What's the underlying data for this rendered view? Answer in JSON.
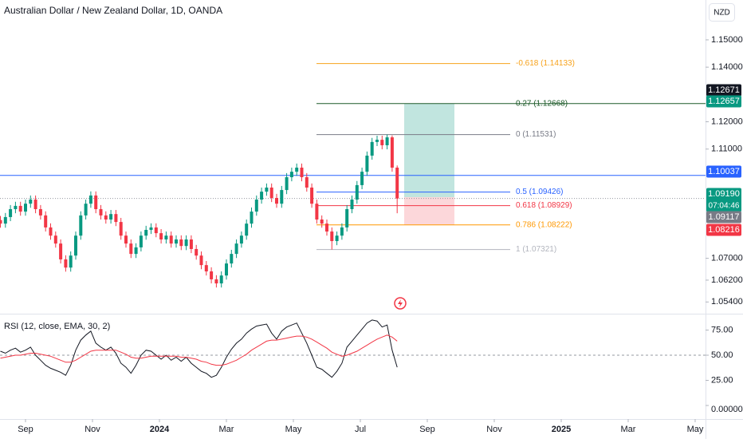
{
  "header": {
    "title": "Australian Dollar / New Zealand Dollar, 1D, OANDA",
    "currency": "NZD"
  },
  "chart_data": {
    "type": "candlestick",
    "x": [
      0.25,
      0.4,
      0.55,
      0.7,
      0.85,
      1,
      1.15,
      1.3,
      1.45,
      1.6,
      1.75,
      1.9,
      2.05,
      2.2,
      2.35,
      2.5,
      2.65,
      2.8,
      2.95,
      3.1,
      3.25,
      3.4,
      3.55,
      3.7,
      3.85,
      4,
      4.15,
      4.3,
      4.45,
      4.6,
      4.75,
      4.9,
      5.05,
      5.2,
      5.35,
      5.5,
      5.65,
      5.8,
      5.95,
      6.1,
      6.25,
      6.4,
      6.55,
      6.7,
      6.85,
      7,
      7.15,
      7.3,
      7.45,
      7.6,
      7.75,
      7.9,
      8.05,
      8.2,
      8.35,
      8.5,
      8.65,
      8.8,
      8.95,
      9.1,
      9.25,
      9.4,
      9.55,
      9.7,
      9.85,
      10,
      10.15,
      10.3,
      10.45,
      10.6,
      10.75,
      10.9,
      11.05,
      11.2,
      11.35,
      11.5,
      11.65,
      11.8,
      11.95,
      12.1
    ],
    "open": [
      1.084,
      1.0827,
      1.0851,
      1.088,
      1.0892,
      1.0871,
      1.09,
      1.0915,
      1.088,
      1.0857,
      1.0813,
      1.0783,
      1.0754,
      1.0696,
      1.0666,
      1.071,
      1.0783,
      1.0857,
      1.09,
      1.093,
      1.088,
      1.0857,
      1.0842,
      1.0862,
      1.0833,
      1.0783,
      1.0754,
      1.0716,
      1.074,
      1.0783,
      1.0804,
      1.0813,
      1.0792,
      1.0769,
      1.0783,
      1.0754,
      1.0769,
      1.0745,
      1.0769,
      1.0734,
      1.071,
      1.0675,
      1.0652,
      1.0623,
      1.0608,
      1.0637,
      1.0681,
      1.0716,
      1.0754,
      1.0783,
      1.0827,
      1.0871,
      1.0915,
      1.0944,
      1.0959,
      1.0921,
      1.09,
      1.095,
      1.0997,
      1.1017,
      1.1032,
      1.0997,
      1.0959,
      1.09,
      1.0842,
      1.0827,
      1.0798,
      1.0763,
      1.0783,
      1.0813,
      1.088,
      1.0915,
      1.0968,
      1.1017,
      1.1076,
      1.1126,
      1.1134,
      1.1114,
      1.1143,
      1.1032
    ],
    "high": [
      1.0855,
      1.0866,
      1.0895,
      1.0907,
      1.0907,
      1.0915,
      1.093,
      1.093,
      1.0895,
      1.0872,
      1.0828,
      1.0798,
      1.0769,
      1.0711,
      1.0725,
      1.0798,
      1.0872,
      1.0915,
      1.0945,
      1.0945,
      1.0895,
      1.0872,
      1.0877,
      1.0877,
      1.0848,
      1.0798,
      1.0769,
      1.0755,
      1.0798,
      1.0819,
      1.0828,
      1.0828,
      1.0807,
      1.0798,
      1.0798,
      1.0784,
      1.0784,
      1.0784,
      1.0784,
      1.0749,
      1.0725,
      1.069,
      1.0667,
      1.0638,
      1.0652,
      1.0696,
      1.0731,
      1.0769,
      1.0798,
      1.0842,
      1.0886,
      1.093,
      1.0959,
      1.0974,
      1.0974,
      1.0936,
      1.0965,
      1.1012,
      1.1032,
      1.1047,
      1.1047,
      1.1012,
      1.0974,
      1.0915,
      1.0857,
      1.0842,
      1.0813,
      1.0798,
      1.0828,
      1.0895,
      1.093,
      1.0983,
      1.1032,
      1.1091,
      1.1141,
      1.1149,
      1.1149,
      1.1153,
      1.115,
      1.104
    ],
    "low": [
      1.0812,
      1.0812,
      1.0836,
      1.0865,
      1.0856,
      1.0856,
      1.0885,
      1.0865,
      1.0842,
      1.0798,
      1.0768,
      1.0739,
      1.0681,
      1.0651,
      1.0651,
      1.0695,
      1.0768,
      1.0842,
      1.0885,
      1.0865,
      1.0842,
      1.0827,
      1.0827,
      1.0818,
      1.0768,
      1.0739,
      1.0701,
      1.0701,
      1.0725,
      1.0768,
      1.0789,
      1.0777,
      1.0754,
      1.0754,
      1.0739,
      1.0739,
      1.073,
      1.073,
      1.0719,
      1.0695,
      1.066,
      1.0637,
      1.0608,
      1.0593,
      1.0593,
      1.0622,
      1.0666,
      1.0701,
      1.0739,
      1.0768,
      1.0812,
      1.0856,
      1.09,
      1.0929,
      1.0906,
      1.0885,
      1.0885,
      1.0935,
      1.0982,
      1.1002,
      1.0982,
      1.0944,
      1.0885,
      1.0827,
      1.0812,
      1.0783,
      1.0732,
      1.0748,
      1.0768,
      1.0798,
      1.0865,
      1.09,
      1.0953,
      1.1002,
      1.1061,
      1.1111,
      1.1099,
      1.1099,
      1.1017,
      1.0865
    ],
    "close": [
      1.0827,
      1.0851,
      1.088,
      1.0892,
      1.0871,
      1.09,
      1.0915,
      1.088,
      1.0857,
      1.0813,
      1.0783,
      1.0754,
      1.0696,
      1.0666,
      1.071,
      1.0783,
      1.0857,
      1.09,
      1.093,
      1.088,
      1.0857,
      1.0842,
      1.0862,
      1.0833,
      1.0783,
      1.0754,
      1.0716,
      1.074,
      1.0783,
      1.0804,
      1.0813,
      1.0792,
      1.0769,
      1.0783,
      1.0754,
      1.0769,
      1.0745,
      1.0769,
      1.0734,
      1.071,
      1.0675,
      1.0652,
      1.0623,
      1.0608,
      1.0637,
      1.0681,
      1.0716,
      1.0754,
      1.0783,
      1.0827,
      1.0871,
      1.0915,
      1.0944,
      1.0959,
      1.0921,
      1.09,
      1.095,
      1.0997,
      1.1017,
      1.1032,
      1.0997,
      1.0959,
      1.09,
      1.0842,
      1.0827,
      1.0798,
      1.0763,
      1.0783,
      1.0813,
      1.088,
      1.0915,
      1.0968,
      1.1017,
      1.1076,
      1.1126,
      1.1134,
      1.1114,
      1.1143,
      1.1032,
      1.0919
    ],
    "up_color": "#089981",
    "down_color": "#f23645",
    "xlim": [
      0.238,
      21.31
    ],
    "xticks": [
      {
        "value": 1,
        "label": "Sep"
      },
      {
        "value": 3,
        "label": "Nov"
      },
      {
        "value": 5,
        "label": "2024"
      },
      {
        "value": 7,
        "label": "Mar"
      },
      {
        "value": 9,
        "label": "May"
      },
      {
        "value": 11,
        "label": "Jul"
      },
      {
        "value": 13,
        "label": "Sep"
      },
      {
        "value": 15,
        "label": "Nov"
      },
      {
        "value": 17,
        "label": "2025"
      },
      {
        "value": 19,
        "label": "Mar"
      },
      {
        "value": 21,
        "label": "May"
      }
    ],
    "ylim": [
      1.05,
      1.1646
    ],
    "yticks": [
      {
        "value": 1.15,
        "label": "1.15000"
      },
      {
        "value": 1.14,
        "label": "1.14000"
      },
      {
        "value": 1.12,
        "label": "1.12000"
      },
      {
        "value": 1.11,
        "label": "1.11000"
      },
      {
        "value": 1.07,
        "label": "1.07000"
      },
      {
        "value": 1.062,
        "label": "1.06200"
      },
      {
        "value": 1.054,
        "label": "1.05400"
      }
    ],
    "fib_levels": [
      {
        "text": "-0.618 (1.14133)",
        "value": 1.14133,
        "color": "#f7a21b",
        "extend_right": false
      },
      {
        "text": "0.27 (1.12668)",
        "value": 1.12668,
        "color": "#1e5b2a",
        "extend_right": true
      },
      {
        "text": "0 (1.11531)",
        "value": 1.11531,
        "color": "#787b86",
        "extend_right": false
      },
      {
        "text": "0.5 (1.09426)",
        "value": 1.09426,
        "color": "#2962ff",
        "extend_right": false
      },
      {
        "text": "0.618 (1.08929)",
        "value": 1.08929,
        "color": "#f23645",
        "extend_right": false
      },
      {
        "text": "0.786 (1.08222)",
        "value": 1.08222,
        "color": "#ff9800",
        "extend_right": false
      },
      {
        "text": "1 (1.07321)",
        "value": 1.07321,
        "color": "#b2b5be",
        "extend_right": false
      }
    ],
    "horizontal_lines": [
      {
        "value": 1.10037,
        "color": "#2962ff"
      }
    ],
    "position": {
      "target": 1.12657,
      "entry": 1.0924,
      "stop": 1.08222
    },
    "price_labels": [
      {
        "value": 1.12671,
        "label": "1.12671",
        "color": "#131722"
      },
      {
        "value": 1.12657,
        "label": "1.12657",
        "color": "#089981"
      },
      {
        "value": 1.10037,
        "label": "1.10037",
        "color": "#2962ff"
      },
      {
        "value": 1.0919,
        "label": "1.09190",
        "color": "#089981",
        "timer": "07:04:46"
      },
      {
        "value": 1.09117,
        "label": "1.09117",
        "color": "#787b86"
      },
      {
        "value": 1.08216,
        "label": "1.08216",
        "color": "#f23645"
      }
    ],
    "indicator": {
      "title": "RSI (12, close, EMA, 30, 2)",
      "ylim": [
        -13.5,
        89.7
      ],
      "yticks": [
        {
          "value": 75,
          "label": "75.00"
        },
        {
          "value": 50,
          "label": "50.00"
        },
        {
          "value": 25,
          "label": "25.00"
        },
        {
          "value": 0,
          "label": "0.00000"
        }
      ],
      "midline": 50,
      "series": [
        {
          "color": "#131722",
          "values": [
            54,
            52,
            55,
            57,
            53,
            55,
            58,
            50,
            45,
            40,
            37,
            35,
            33,
            30,
            40,
            55,
            65,
            70,
            74,
            62,
            58,
            55,
            58,
            52,
            42,
            38,
            32,
            40,
            50,
            55,
            54,
            50,
            46,
            50,
            45,
            48,
            44,
            48,
            42,
            38,
            34,
            32,
            28,
            30,
            38,
            48,
            56,
            62,
            66,
            72,
            76,
            79,
            80,
            81,
            72,
            66,
            74,
            78,
            80,
            82,
            72,
            62,
            50,
            38,
            36,
            32,
            28,
            34,
            42,
            58,
            64,
            70,
            76,
            82,
            85,
            84,
            78,
            80,
            55,
            38
          ]
        },
        {
          "color": "#f23645",
          "values": [
            47,
            48,
            49,
            50,
            50,
            51,
            52,
            52,
            51,
            50,
            49,
            47,
            45,
            43,
            43,
            45,
            48,
            51,
            54,
            55,
            55,
            55,
            55,
            55,
            53,
            51,
            48,
            47,
            47,
            48,
            49,
            49,
            49,
            49,
            49,
            49,
            48,
            48,
            47,
            46,
            44,
            43,
            41,
            40,
            40,
            41,
            43,
            45,
            48,
            51,
            55,
            58,
            61,
            64,
            65,
            65,
            66,
            67,
            68,
            69,
            69,
            68,
            66,
            63,
            60,
            57,
            53,
            51,
            49,
            50,
            52,
            54,
            57,
            60,
            63,
            66,
            68,
            70,
            68,
            64
          ]
        }
      ]
    }
  }
}
